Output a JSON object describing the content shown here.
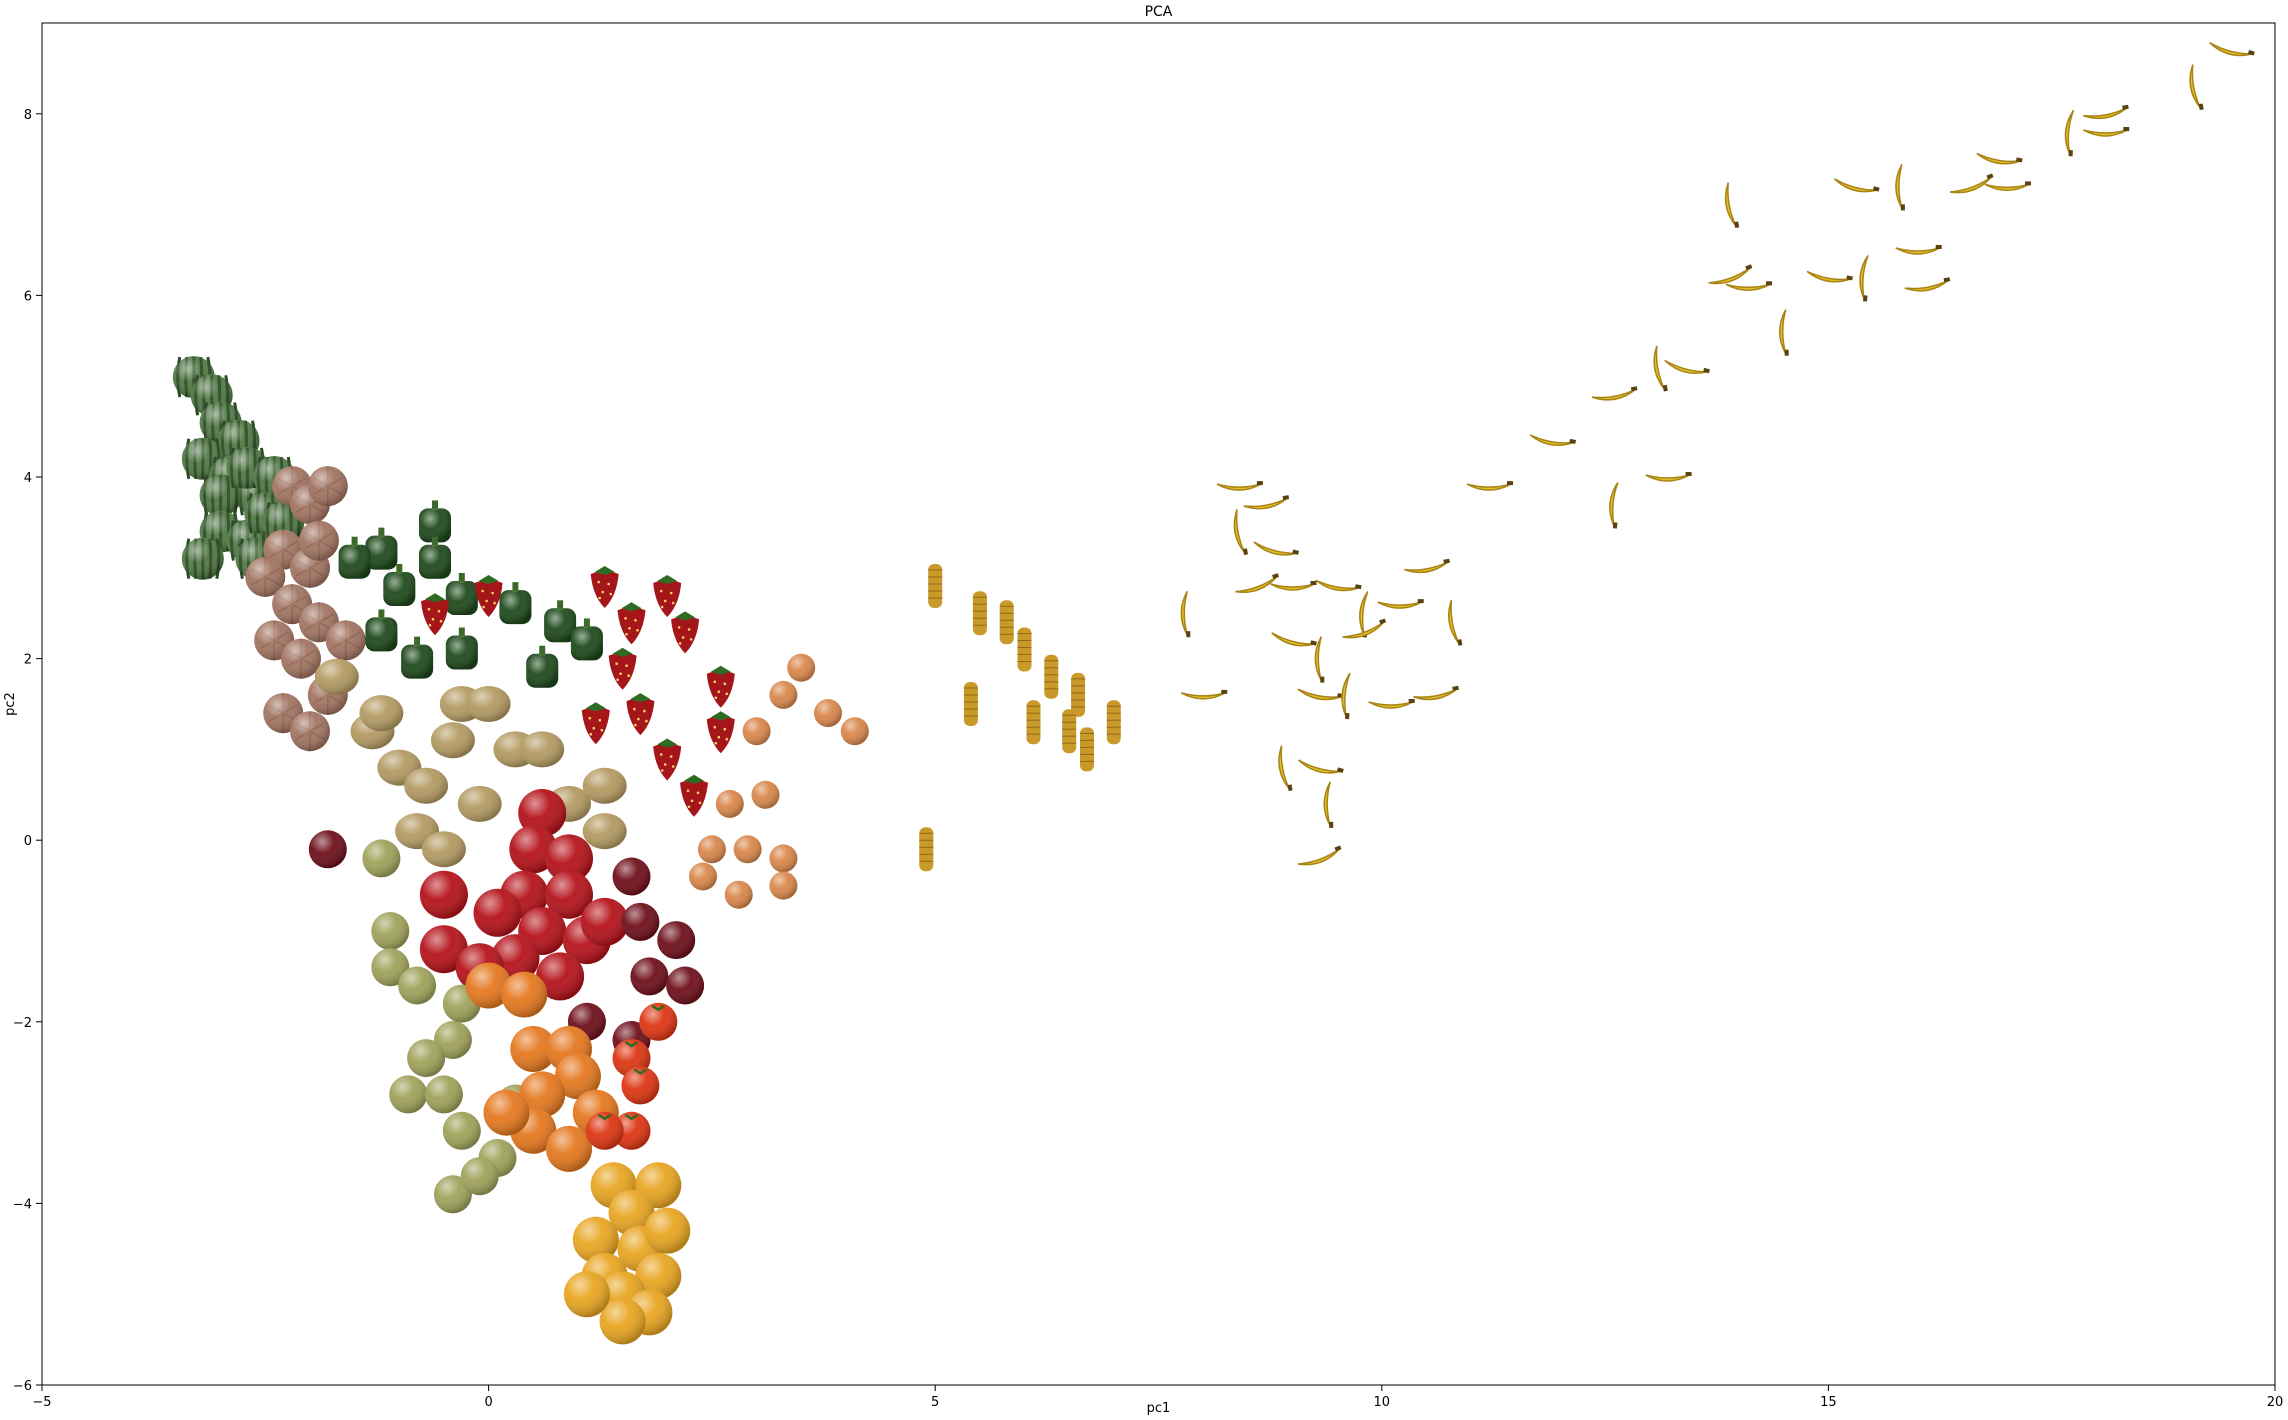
{
  "chart_data": {
    "type": "scatter",
    "title": "PCA",
    "xlabel": "pc1",
    "ylabel": "pc2",
    "xlim": [
      -5,
      20
    ],
    "ylim": [
      -6,
      9
    ],
    "xticks": [
      -5,
      0,
      5,
      10,
      15,
      20
    ],
    "yticks": [
      -6,
      -4,
      -2,
      0,
      2,
      4,
      6,
      8
    ],
    "xtick_labels": [
      "−5",
      "0",
      "5",
      "10",
      "15",
      "20"
    ],
    "ytick_labels": [
      "−6",
      "−4",
      "−2",
      "0",
      "2",
      "4",
      "6",
      "8"
    ],
    "grid": false,
    "legend": "none",
    "marker": "fruit image thumbnails",
    "colors": {
      "watermelon": "#4f7a43",
      "melon": "#a27461",
      "pepper": "#1f4a1c",
      "strawberry": "#a5161a",
      "potato": "#b39a62",
      "red_apple": "#b5121a",
      "plum": "#6e0f1a",
      "green_apple": "#9fa25a",
      "orange": "#e5781f",
      "tomato": "#de3512",
      "yellow_fruit": "#e8a521",
      "onion": "#d9874b",
      "corn": "#c99a2a",
      "banana": "#e3bf2d"
    },
    "series": [
      {
        "cluster": "watermelon",
        "icon": "watermelon",
        "points": [
          [
            -3.3,
            5.1
          ],
          [
            -3.1,
            4.9
          ],
          [
            -3.0,
            4.6
          ],
          [
            -2.8,
            4.4
          ],
          [
            -3.2,
            4.2
          ],
          [
            -2.9,
            4.0
          ],
          [
            -2.6,
            3.8
          ],
          [
            -3.0,
            3.8
          ],
          [
            -2.7,
            4.1
          ],
          [
            -2.4,
            4.0
          ],
          [
            -3.0,
            3.4
          ],
          [
            -2.7,
            3.3
          ],
          [
            -2.5,
            3.6
          ],
          [
            -3.2,
            3.1
          ],
          [
            -2.3,
            3.5
          ],
          [
            -2.6,
            3.1
          ]
        ]
      },
      {
        "cluster": "melon",
        "icon": "melon",
        "points": [
          [
            -2.2,
            3.9
          ],
          [
            -2.0,
            3.7
          ],
          [
            -1.8,
            3.9
          ],
          [
            -2.3,
            3.2
          ],
          [
            -2.0,
            3.0
          ],
          [
            -2.5,
            2.9
          ],
          [
            -2.2,
            2.6
          ],
          [
            -1.9,
            2.4
          ],
          [
            -2.4,
            2.2
          ],
          [
            -2.1,
            2.0
          ],
          [
            -2.3,
            1.4
          ],
          [
            -2.0,
            1.2
          ],
          [
            -1.8,
            1.6
          ],
          [
            -1.6,
            2.2
          ],
          [
            -1.9,
            3.3
          ]
        ]
      },
      {
        "cluster": "pepper",
        "icon": "pepper",
        "points": [
          [
            -0.6,
            3.5
          ],
          [
            -1.2,
            3.2
          ],
          [
            -1.5,
            3.1
          ],
          [
            -0.6,
            3.1
          ],
          [
            -0.3,
            2.7
          ],
          [
            -1.0,
            2.8
          ],
          [
            -1.2,
            2.3
          ],
          [
            -0.8,
            2.0
          ],
          [
            0.3,
            2.6
          ],
          [
            0.8,
            2.4
          ],
          [
            -0.3,
            2.1
          ],
          [
            0.6,
            1.9
          ],
          [
            1.1,
            2.2
          ]
        ]
      },
      {
        "cluster": "strawberry",
        "icon": "strawberry",
        "points": [
          [
            0.0,
            2.7
          ],
          [
            1.3,
            2.8
          ],
          [
            2.0,
            2.7
          ],
          [
            2.2,
            2.3
          ],
          [
            1.5,
            1.9
          ],
          [
            1.7,
            1.4
          ],
          [
            2.0,
            0.9
          ],
          [
            2.6,
            1.7
          ],
          [
            2.6,
            1.2
          ],
          [
            2.3,
            0.5
          ],
          [
            -0.6,
            2.5
          ],
          [
            1.2,
            1.3
          ],
          [
            1.6,
            2.4
          ]
        ]
      },
      {
        "cluster": "potato",
        "icon": "potato",
        "points": [
          [
            -1.7,
            1.8
          ],
          [
            -1.3,
            1.2
          ],
          [
            -1.0,
            0.8
          ],
          [
            -0.7,
            0.6
          ],
          [
            -0.8,
            0.1
          ],
          [
            -0.4,
            1.1
          ],
          [
            -0.3,
            1.5
          ],
          [
            0.0,
            1.5
          ],
          [
            -0.1,
            0.4
          ],
          [
            0.3,
            1.0
          ],
          [
            0.6,
            1.0
          ],
          [
            0.9,
            0.4
          ],
          [
            1.3,
            0.6
          ],
          [
            1.3,
            0.1
          ],
          [
            -1.2,
            1.4
          ],
          [
            -0.5,
            -0.1
          ]
        ]
      },
      {
        "cluster": "red_apple",
        "icon": "red_apple",
        "points": [
          [
            0.6,
            0.3
          ],
          [
            0.5,
            -0.1
          ],
          [
            0.9,
            -0.2
          ],
          [
            0.4,
            -0.6
          ],
          [
            0.9,
            -0.6
          ],
          [
            0.1,
            -0.8
          ],
          [
            -0.5,
            -0.6
          ],
          [
            0.6,
            -1.0
          ],
          [
            1.1,
            -1.1
          ],
          [
            0.3,
            -1.3
          ],
          [
            -0.5,
            -1.2
          ],
          [
            -0.1,
            -1.4
          ],
          [
            0.8,
            -1.5
          ],
          [
            1.3,
            -0.9
          ]
        ]
      },
      {
        "cluster": "plum",
        "icon": "plum",
        "points": [
          [
            1.6,
            -0.4
          ],
          [
            1.7,
            -0.9
          ],
          [
            2.1,
            -1.1
          ],
          [
            1.8,
            -1.5
          ],
          [
            2.2,
            -1.6
          ],
          [
            1.6,
            -2.2
          ],
          [
            -1.8,
            -0.1
          ],
          [
            1.1,
            -2.0
          ]
        ]
      },
      {
        "cluster": "green_apple",
        "icon": "green_apple",
        "points": [
          [
            -1.2,
            -0.2
          ],
          [
            -1.1,
            -1.0
          ],
          [
            -1.1,
            -1.4
          ],
          [
            -0.8,
            -1.6
          ],
          [
            -0.4,
            -2.2
          ],
          [
            -0.9,
            -2.8
          ],
          [
            -0.5,
            -2.8
          ],
          [
            -0.3,
            -3.2
          ],
          [
            0.1,
            -3.5
          ],
          [
            -0.4,
            -3.9
          ],
          [
            -0.1,
            -3.7
          ],
          [
            0.3,
            -2.9
          ],
          [
            -0.7,
            -2.4
          ],
          [
            -0.3,
            -1.8
          ]
        ]
      },
      {
        "cluster": "orange",
        "icon": "orange",
        "points": [
          [
            0.0,
            -1.6
          ],
          [
            0.4,
            -1.7
          ],
          [
            0.5,
            -2.3
          ],
          [
            0.9,
            -2.3
          ],
          [
            1.0,
            -2.6
          ],
          [
            0.6,
            -2.8
          ],
          [
            1.2,
            -3.0
          ],
          [
            0.5,
            -3.2
          ],
          [
            0.9,
            -3.4
          ],
          [
            0.2,
            -3.0
          ]
        ]
      },
      {
        "cluster": "tomato",
        "icon": "tomato",
        "points": [
          [
            1.6,
            -2.4
          ],
          [
            1.7,
            -2.7
          ],
          [
            1.6,
            -3.2
          ],
          [
            1.3,
            -3.2
          ],
          [
            1.9,
            -2.0
          ]
        ]
      },
      {
        "cluster": "yellow_fruit",
        "icon": "yellow_fruit",
        "points": [
          [
            1.4,
            -3.8
          ],
          [
            1.9,
            -3.8
          ],
          [
            1.6,
            -4.1
          ],
          [
            1.2,
            -4.4
          ],
          [
            1.7,
            -4.5
          ],
          [
            1.3,
            -4.8
          ],
          [
            1.9,
            -4.8
          ],
          [
            1.5,
            -5.0
          ],
          [
            1.8,
            -5.2
          ],
          [
            1.5,
            -5.3
          ],
          [
            1.1,
            -5.0
          ],
          [
            2.0,
            -4.3
          ]
        ]
      },
      {
        "cluster": "onion",
        "icon": "onion",
        "points": [
          [
            3.5,
            1.9
          ],
          [
            3.8,
            1.4
          ],
          [
            4.1,
            1.2
          ],
          [
            3.3,
            1.6
          ],
          [
            3.0,
            1.2
          ],
          [
            2.5,
            -0.1
          ],
          [
            2.9,
            -0.1
          ],
          [
            3.3,
            -0.2
          ],
          [
            3.3,
            -0.5
          ],
          [
            2.8,
            -0.6
          ],
          [
            2.4,
            -0.4
          ],
          [
            3.1,
            0.5
          ],
          [
            2.7,
            0.4
          ]
        ]
      },
      {
        "cluster": "corn",
        "icon": "corn",
        "points": [
          [
            5.0,
            2.8
          ],
          [
            5.5,
            2.5
          ],
          [
            5.8,
            2.4
          ],
          [
            6.0,
            2.1
          ],
          [
            6.3,
            1.8
          ],
          [
            6.6,
            1.6
          ],
          [
            6.5,
            1.2
          ],
          [
            6.7,
            1.0
          ],
          [
            7.0,
            1.3
          ],
          [
            6.1,
            1.3
          ],
          [
            4.9,
            -0.1
          ],
          [
            5.4,
            1.5
          ]
        ]
      },
      {
        "cluster": "banana",
        "icon": "banana",
        "points": [
          [
            8.4,
            3.9
          ],
          [
            8.7,
            3.7
          ],
          [
            8.4,
            3.4
          ],
          [
            8.8,
            3.2
          ],
          [
            7.8,
            2.5
          ],
          [
            8.6,
            2.8
          ],
          [
            9.0,
            2.8
          ],
          [
            9.5,
            2.8
          ],
          [
            9.8,
            2.5
          ],
          [
            10.2,
            2.6
          ],
          [
            10.5,
            3.0
          ],
          [
            10.8,
            2.4
          ],
          [
            9.0,
            2.2
          ],
          [
            9.3,
            2.0
          ],
          [
            9.8,
            2.3
          ],
          [
            8.0,
            1.6
          ],
          [
            9.3,
            1.6
          ],
          [
            9.6,
            1.6
          ],
          [
            10.1,
            1.5
          ],
          [
            10.6,
            1.6
          ],
          [
            8.9,
            0.8
          ],
          [
            9.3,
            0.8
          ],
          [
            9.4,
            0.4
          ],
          [
            9.3,
            -0.2
          ],
          [
            11.2,
            3.9
          ],
          [
            11.9,
            4.4
          ],
          [
            12.6,
            3.7
          ],
          [
            13.2,
            4.0
          ],
          [
            12.6,
            4.9
          ],
          [
            13.1,
            5.2
          ],
          [
            13.4,
            5.2
          ],
          [
            14.5,
            5.6
          ],
          [
            13.9,
            6.2
          ],
          [
            14.1,
            6.1
          ],
          [
            15.0,
            6.2
          ],
          [
            15.4,
            6.2
          ],
          [
            16.0,
            6.5
          ],
          [
            16.1,
            6.1
          ],
          [
            13.9,
            7.0
          ],
          [
            15.3,
            7.2
          ],
          [
            15.8,
            7.2
          ],
          [
            16.6,
            7.2
          ],
          [
            17.0,
            7.2
          ],
          [
            16.9,
            7.5
          ],
          [
            17.7,
            7.8
          ],
          [
            18.1,
            7.8
          ],
          [
            18.1,
            8.0
          ],
          [
            19.1,
            8.3
          ],
          [
            19.5,
            8.7
          ]
        ]
      }
    ]
  }
}
